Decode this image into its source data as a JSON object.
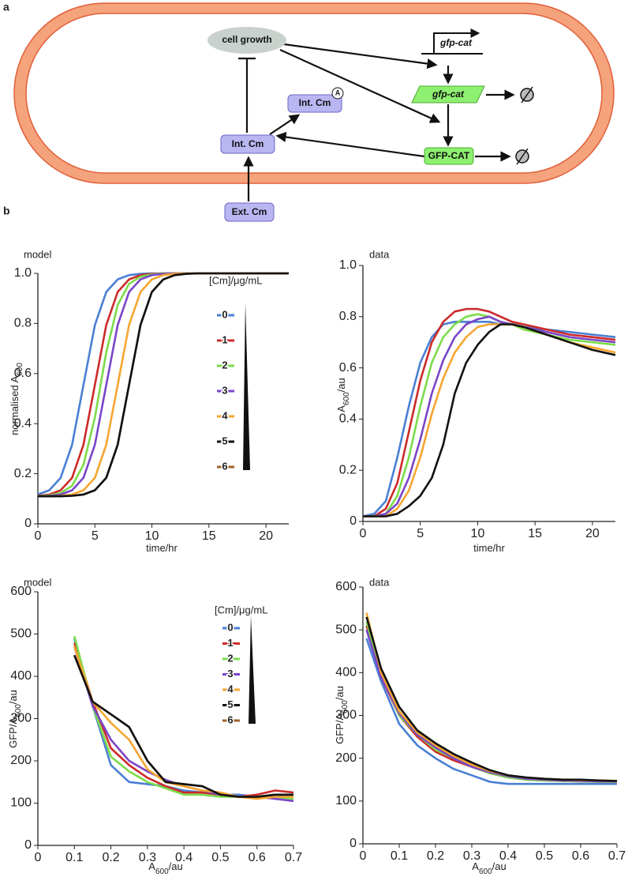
{
  "panel_labels": [
    "a",
    "b"
  ],
  "diagram": {
    "nodes": {
      "cell_growth": "cell growth",
      "int_cm_bound": "Int. Cm",
      "bound_badge": "A",
      "int_cm": "Int. Cm",
      "ext_cm": "Ext. Cm",
      "gene": "gfp-cat",
      "mrna": "gfp-cat",
      "protein": "GFP-CAT"
    }
  },
  "chart_data": [
    {
      "type": "line",
      "title": "model",
      "x_label": [
        "time/hr"
      ],
      "y_label": [
        "normalised A",
        "600"
      ],
      "x": [
        0,
        1,
        2,
        3,
        4,
        5,
        6,
        7,
        8,
        9,
        10,
        11,
        12,
        13,
        14,
        16,
        18,
        20,
        22
      ],
      "xlim": [
        0,
        22
      ],
      "ylim": [
        0,
        1
      ],
      "xticks": [
        0,
        5,
        10,
        15,
        20
      ],
      "yticks": [
        0,
        0.2,
        0.4,
        0.6,
        0.8,
        {
          "value": 1,
          "label": "1.0"
        }
      ],
      "legend": true,
      "legend_title": "[Cm]/μg/mL",
      "series": [
        {
          "name": "0",
          "color": "#4a7fd4",
          "values": [
            0.117,
            0.134,
            0.184,
            0.316,
            0.555,
            0.794,
            0.926,
            0.976,
            0.993,
            0.998,
            1,
            1,
            1,
            1,
            1,
            1,
            1,
            1,
            1
          ]
        },
        {
          "name": "1",
          "color": "#cc2a2a",
          "values": [
            0.112,
            0.117,
            0.134,
            0.184,
            0.316,
            0.555,
            0.794,
            0.926,
            0.976,
            0.993,
            0.998,
            1,
            1,
            1,
            1,
            1,
            1,
            1,
            1
          ]
        },
        {
          "name": "2",
          "color": "#7cdc4a",
          "values": [
            0.111,
            0.114,
            0.123,
            0.152,
            0.236,
            0.425,
            0.685,
            0.874,
            0.958,
            0.987,
            0.996,
            1,
            1,
            1,
            1,
            1,
            1,
            1,
            1
          ]
        },
        {
          "name": "3",
          "color": "#7a45c8",
          "values": [
            0.11,
            0.112,
            0.117,
            0.134,
            0.184,
            0.316,
            0.555,
            0.794,
            0.926,
            0.976,
            0.993,
            0.998,
            1,
            1,
            1,
            1,
            1,
            1,
            1
          ]
        },
        {
          "name": "4",
          "color": "#f6a530",
          "values": [
            0.11,
            0.11,
            0.112,
            0.117,
            0.134,
            0.184,
            0.316,
            0.555,
            0.794,
            0.926,
            0.976,
            0.993,
            0.998,
            1,
            1,
            1,
            1,
            1,
            1
          ]
        },
        {
          "name": "6",
          "color": "#a0632a",
          "values": [
            0.11,
            0.11,
            0.11,
            0.112,
            0.117,
            0.134,
            0.184,
            0.316,
            0.555,
            0.794,
            0.926,
            0.976,
            0.993,
            0.998,
            1,
            1,
            1,
            1,
            1
          ]
        },
        {
          "name": "5",
          "color": "#111111",
          "values": [
            0.11,
            0.11,
            0.11,
            0.112,
            0.117,
            0.134,
            0.184,
            0.316,
            0.555,
            0.794,
            0.926,
            0.976,
            0.993,
            0.998,
            1,
            1,
            1,
            1,
            1
          ]
        }
      ]
    },
    {
      "type": "line",
      "title": "data",
      "x_label": [
        "time/hr"
      ],
      "y_label": [
        "A",
        "600",
        "/au"
      ],
      "x": [
        0,
        1,
        2,
        3,
        4,
        5,
        6,
        7,
        8,
        9,
        10,
        11,
        12,
        13,
        14,
        16,
        18,
        20,
        22
      ],
      "xlim": [
        0,
        22
      ],
      "ylim": [
        0,
        1
      ],
      "xticks": [
        0,
        5,
        10,
        15,
        20
      ],
      "yticks": [
        0,
        0.2,
        0.4,
        0.6,
        0.8,
        {
          "value": 1,
          "label": "1.0"
        }
      ],
      "legend": false,
      "series": [
        {
          "color": "#4a7fd4",
          "values": [
            0.02,
            0.03,
            0.08,
            0.25,
            0.45,
            0.62,
            0.72,
            0.77,
            0.78,
            0.78,
            0.78,
            0.78,
            0.77,
            0.77,
            0.76,
            0.75,
            0.74,
            0.73,
            0.72
          ]
        },
        {
          "color": "#cc2a2a",
          "values": [
            0.02,
            0.02,
            0.05,
            0.15,
            0.35,
            0.55,
            0.7,
            0.78,
            0.82,
            0.83,
            0.83,
            0.82,
            0.8,
            0.78,
            0.77,
            0.75,
            0.73,
            0.72,
            0.71
          ]
        },
        {
          "color": "#7cdc4a",
          "values": [
            0.02,
            0.02,
            0.03,
            0.1,
            0.25,
            0.45,
            0.62,
            0.72,
            0.77,
            0.8,
            0.81,
            0.8,
            0.78,
            0.77,
            0.75,
            0.73,
            0.71,
            0.7,
            0.69
          ]
        },
        {
          "color": "#7a45c8",
          "values": [
            0.02,
            0.02,
            0.03,
            0.07,
            0.17,
            0.32,
            0.5,
            0.63,
            0.72,
            0.77,
            0.79,
            0.8,
            0.78,
            0.77,
            0.76,
            0.74,
            0.72,
            0.71,
            0.7
          ]
        },
        {
          "color": "#f6a530",
          "values": [
            0.02,
            0.02,
            0.02,
            0.05,
            0.12,
            0.25,
            0.42,
            0.56,
            0.66,
            0.72,
            0.76,
            0.77,
            0.77,
            0.77,
            0.76,
            0.73,
            0.7,
            0.68,
            0.66
          ]
        },
        {
          "color": "#111111",
          "values": [
            0.02,
            0.02,
            0.02,
            0.03,
            0.06,
            0.1,
            0.17,
            0.3,
            0.5,
            0.62,
            0.69,
            0.74,
            0.77,
            0.77,
            0.76,
            0.73,
            0.7,
            0.67,
            0.65
          ]
        }
      ]
    },
    {
      "type": "line",
      "title": "model",
      "x_label": [
        "A",
        "600",
        "/au"
      ],
      "y_label": [
        "GFP/A",
        "600",
        "/au"
      ],
      "x": [
        0.1,
        0.15,
        0.2,
        0.25,
        0.3,
        0.35,
        0.4,
        0.45,
        0.5,
        0.55,
        0.6,
        0.65,
        0.7
      ],
      "xlim": [
        0,
        0.7
      ],
      "ylim": [
        0,
        600
      ],
      "xticks": [
        0,
        0.1,
        0.2,
        0.3,
        0.4,
        0.5,
        0.6,
        0.7
      ],
      "yticks": [
        0,
        100,
        200,
        300,
        400,
        500,
        600
      ],
      "legend": true,
      "legend_title": "[Cm]/μg/mL",
      "series": [
        {
          "name": "0",
          "color": "#4a7fd4",
          "values": [
            490,
            330,
            190,
            150,
            145,
            140,
            130,
            125,
            120,
            120,
            115,
            120,
            115
          ]
        },
        {
          "name": "1",
          "color": "#cc2a2a",
          "values": [
            480,
            340,
            230,
            190,
            160,
            140,
            125,
            125,
            120,
            115,
            120,
            130,
            125
          ]
        },
        {
          "name": "2",
          "color": "#7cdc4a",
          "values": [
            495,
            330,
            210,
            175,
            150,
            135,
            120,
            120,
            115,
            115,
            115,
            115,
            110
          ]
        },
        {
          "name": "3",
          "color": "#7a45c8",
          "values": [
            470,
            330,
            250,
            200,
            175,
            155,
            140,
            130,
            120,
            115,
            115,
            110,
            105
          ]
        },
        {
          "name": "4",
          "color": "#f6a530",
          "values": [
            470,
            340,
            290,
            250,
            180,
            150,
            140,
            130,
            125,
            115,
            110,
            115,
            115
          ]
        },
        {
          "name": "6",
          "color": "#a0632a",
          "values": [
            450,
            340,
            310,
            280,
            200,
            150,
            145,
            140,
            120,
            115,
            115,
            120,
            120
          ]
        },
        {
          "name": "5",
          "color": "#111111",
          "values": [
            450,
            340,
            310,
            280,
            200,
            150,
            145,
            140,
            120,
            115,
            115,
            120,
            120
          ]
        }
      ]
    },
    {
      "type": "line",
      "title": "data",
      "x_label": [
        "A",
        "600",
        "/au"
      ],
      "y_label": [
        "GFP/A",
        "600",
        "/au"
      ],
      "x": [
        0.01,
        0.05,
        0.1,
        0.15,
        0.2,
        0.25,
        0.3,
        0.35,
        0.4,
        0.45,
        0.5,
        0.55,
        0.6,
        0.65,
        0.7
      ],
      "xlim": [
        0,
        0.7
      ],
      "ylim": [
        0,
        600
      ],
      "xticks": [
        0,
        0.1,
        0.2,
        0.3,
        0.4,
        0.5,
        0.6,
        0.7
      ],
      "yticks": [
        0,
        100,
        200,
        300,
        400,
        500,
        600
      ],
      "legend": false,
      "series": [
        {
          "color": "#4a7fd4",
          "values": [
            480,
            380,
            280,
            230,
            200,
            175,
            160,
            145,
            140,
            140,
            140,
            140,
            140,
            140,
            140
          ]
        },
        {
          "color": "#cc2a2a",
          "values": [
            510,
            390,
            300,
            250,
            215,
            195,
            180,
            165,
            155,
            150,
            148,
            147,
            146,
            145,
            145
          ]
        },
        {
          "color": "#7cdc4a",
          "values": [
            520,
            395,
            300,
            255,
            220,
            200,
            180,
            165,
            155,
            150,
            148,
            147,
            146,
            145,
            145
          ]
        },
        {
          "color": "#7a45c8",
          "values": [
            500,
            390,
            305,
            255,
            225,
            200,
            180,
            167,
            158,
            152,
            150,
            148,
            147,
            146,
            146
          ]
        },
        {
          "color": "#f6a530",
          "values": [
            540,
            400,
            310,
            260,
            230,
            205,
            185,
            170,
            160,
            155,
            152,
            150,
            149,
            148,
            147
          ]
        },
        {
          "color": "#111111",
          "values": [
            530,
            410,
            320,
            265,
            235,
            210,
            190,
            172,
            160,
            155,
            152,
            150,
            150,
            148,
            147
          ]
        }
      ]
    }
  ]
}
